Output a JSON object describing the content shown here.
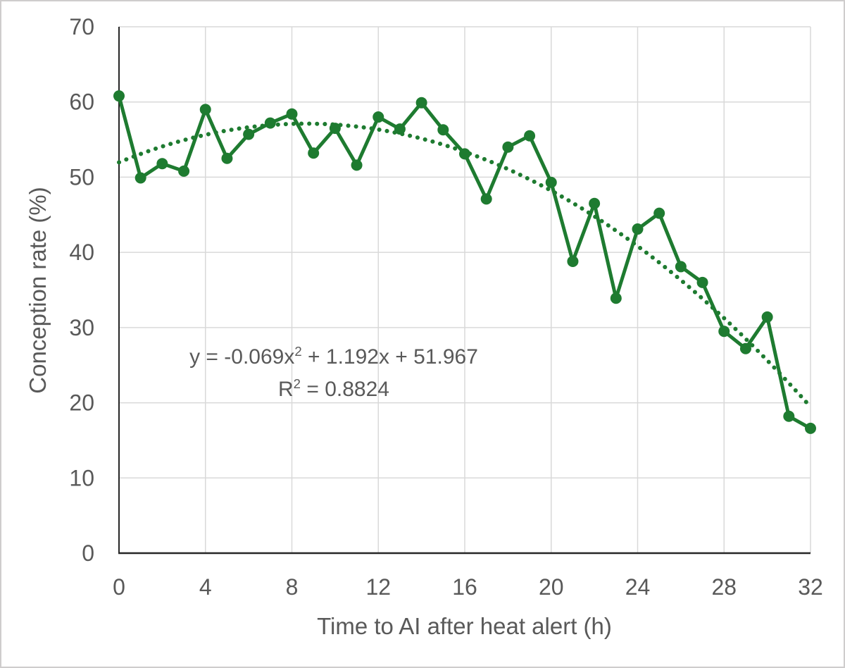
{
  "chart_data": {
    "type": "line",
    "title": "",
    "xlabel": "Time to AI after heat alert (h)",
    "ylabel": "Conception rate (%)",
    "x": [
      0,
      1,
      2,
      3,
      4,
      5,
      6,
      7,
      8,
      9,
      10,
      11,
      12,
      13,
      14,
      15,
      16,
      17,
      18,
      19,
      20,
      21,
      22,
      23,
      24,
      25,
      26,
      27,
      28,
      29,
      30,
      31,
      32
    ],
    "series": [
      {
        "name": "Conception rate",
        "values": [
          60.8,
          49.9,
          51.8,
          50.8,
          59.0,
          52.5,
          55.7,
          57.2,
          58.4,
          53.2,
          56.5,
          51.6,
          58.0,
          56.4,
          59.9,
          56.3,
          53.1,
          47.1,
          54.0,
          55.5,
          49.3,
          38.8,
          46.5,
          33.9,
          43.1,
          45.2,
          38.1,
          36.0,
          29.5,
          27.2,
          31.4,
          18.2,
          16.6
        ]
      }
    ],
    "xlim": [
      0,
      32
    ],
    "ylim": [
      0,
      70
    ],
    "xticks": [
      0,
      4,
      8,
      12,
      16,
      20,
      24,
      28,
      32
    ],
    "yticks": [
      0,
      10,
      20,
      30,
      40,
      50,
      60,
      70
    ],
    "grid": true,
    "legend": "none",
    "marker_style": "circle",
    "trendline": {
      "kind": "polynomial-order-2",
      "style": "dotted",
      "a": -0.069,
      "b": 1.192,
      "c": 51.967,
      "r2": 0.8824
    },
    "annotation": {
      "eq_prefix": "y = -0.069x",
      "eq_sup": "2",
      "eq_suffix": " + 1.192x + 51.967",
      "r2_prefix": "R",
      "r2_sup": "2",
      "r2_suffix": " = 0.8824"
    },
    "colors": {
      "series": "#1E7B30",
      "trendline": "#1E7B30",
      "gridline": "#D9D9D9",
      "axis_line": "#262626",
      "tick_label": "#595959",
      "axis_title": "#595959",
      "annotation_text": "#595959",
      "background": "#FFFFFF",
      "frame_border": "#CFCDCD"
    }
  }
}
